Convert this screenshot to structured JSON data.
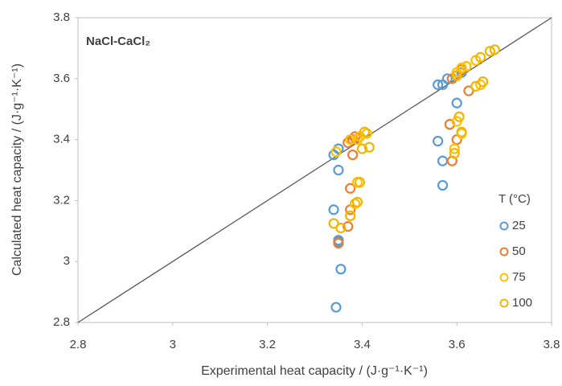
{
  "chart_data": {
    "type": "scatter",
    "annotation": "NaCl-CaCl₂",
    "x_label": "Experimental heat capacity / (J·g⁻¹·K⁻¹)",
    "y_label": "Calculated heat capacity / (J·g⁻¹·K⁻¹)",
    "legend_title": "T (°C)",
    "legend_position": "right",
    "grid": false,
    "xlim": [
      2.8,
      3.8
    ],
    "ylim": [
      2.8,
      3.8
    ],
    "xticks": [
      2.8,
      3,
      3.2,
      3.4,
      3.6,
      3.8
    ],
    "yticks": [
      2.8,
      3,
      3.2,
      3.4,
      3.6,
      3.8
    ],
    "series": [
      {
        "name": "25",
        "color": "#5b9bd5",
        "x": [
          3.34,
          3.35,
          3.35,
          3.34,
          3.35,
          3.35,
          3.355,
          3.345,
          3.56,
          3.57,
          3.58,
          3.6,
          3.56,
          3.57,
          3.57,
          3.61,
          3.62
        ],
        "values": [
          3.35,
          3.37,
          3.3,
          3.17,
          3.07,
          3.065,
          2.975,
          2.85,
          3.58,
          3.58,
          3.6,
          3.52,
          3.395,
          3.33,
          3.25,
          3.62,
          3.64
        ]
      },
      {
        "name": "50",
        "color": "#ed7d31",
        "x": [
          3.37,
          3.38,
          3.385,
          3.38,
          3.375,
          3.375,
          3.37,
          3.35,
          3.59,
          3.6,
          3.61,
          3.625,
          3.585,
          3.6,
          3.59
        ],
        "values": [
          3.39,
          3.4,
          3.41,
          3.35,
          3.24,
          3.17,
          3.115,
          3.06,
          3.6,
          3.61,
          3.63,
          3.56,
          3.45,
          3.4,
          3.33
        ]
      },
      {
        "name": "75",
        "color": "#ffc000",
        "x": [
          3.345,
          3.375,
          3.39,
          3.395,
          3.41,
          3.39,
          3.385,
          3.375,
          3.6,
          3.61,
          3.62,
          3.64,
          3.6,
          3.61,
          3.595,
          3.65
        ],
        "values": [
          3.36,
          3.4,
          3.4,
          3.41,
          3.42,
          3.26,
          3.19,
          3.15,
          3.62,
          3.635,
          3.64,
          3.66,
          3.46,
          3.42,
          3.37,
          3.58
        ]
      },
      {
        "name": "100",
        "color": "#f2b600",
        "x": [
          3.34,
          3.355,
          3.375,
          3.39,
          3.395,
          3.4,
          3.415,
          3.405,
          3.6,
          3.605,
          3.61,
          3.595,
          3.655,
          3.65,
          3.67,
          3.68,
          3.64
        ],
        "values": [
          3.125,
          3.11,
          3.15,
          3.195,
          3.26,
          3.37,
          3.375,
          3.425,
          3.61,
          3.475,
          3.425,
          3.355,
          3.59,
          3.67,
          3.69,
          3.695,
          3.575
        ]
      }
    ]
  }
}
